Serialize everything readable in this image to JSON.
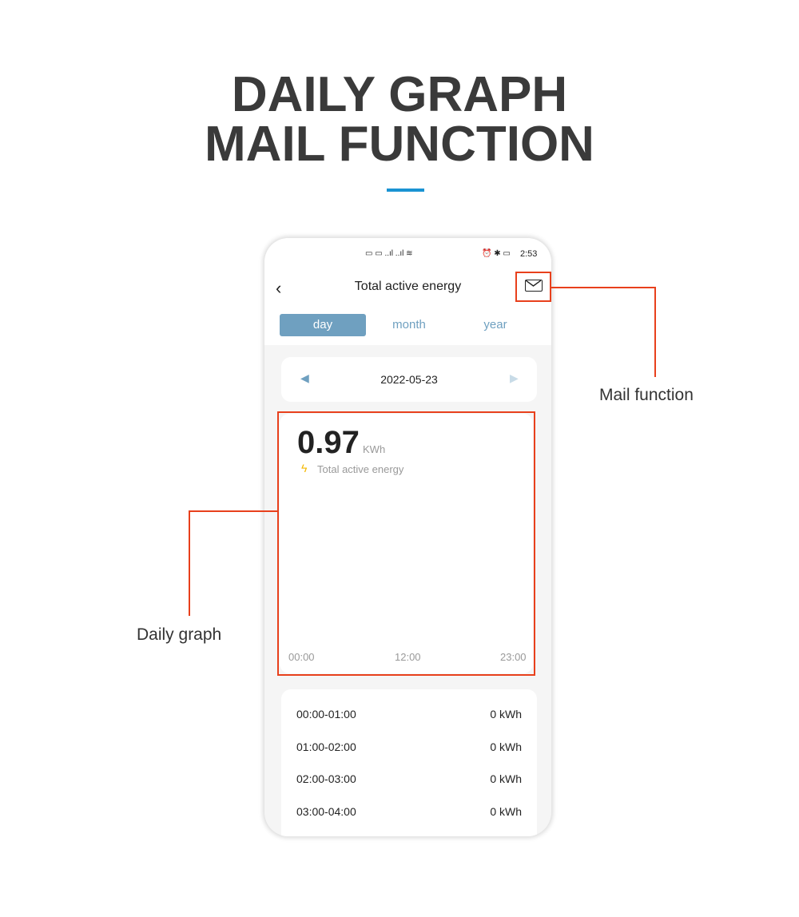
{
  "headline": {
    "line1": "DAILY GRAPH",
    "line2": "MAIL FUNCTION"
  },
  "status_bar": {
    "time": "2:53"
  },
  "header": {
    "title": "Total active energy",
    "back_icon": "chevron-left-icon",
    "mail_icon": "mail-icon"
  },
  "tabs": [
    {
      "label": "day",
      "active": true
    },
    {
      "label": "month"
    },
    {
      "label": "year"
    }
  ],
  "date_nav": {
    "date": "2022-05-23"
  },
  "summary": {
    "value": "0.97",
    "unit": "KWh",
    "label": "Total active energy"
  },
  "chart_axis": [
    "00:00",
    "12:00",
    "23:00"
  ],
  "rows": [
    {
      "range": "00:00-01:00",
      "value": "0 kWh"
    },
    {
      "range": "01:00-02:00",
      "value": "0 kWh"
    },
    {
      "range": "02:00-03:00",
      "value": "0 kWh"
    },
    {
      "range": "03:00-04:00",
      "value": "0 kWh"
    }
  ],
  "annotations": {
    "mail": "Mail function",
    "graph": "Daily graph"
  },
  "colors": {
    "accent": "#1a93d3",
    "annotation": "#e8401c",
    "tab": "#6fa0c0",
    "bolt": "#f5b800"
  }
}
